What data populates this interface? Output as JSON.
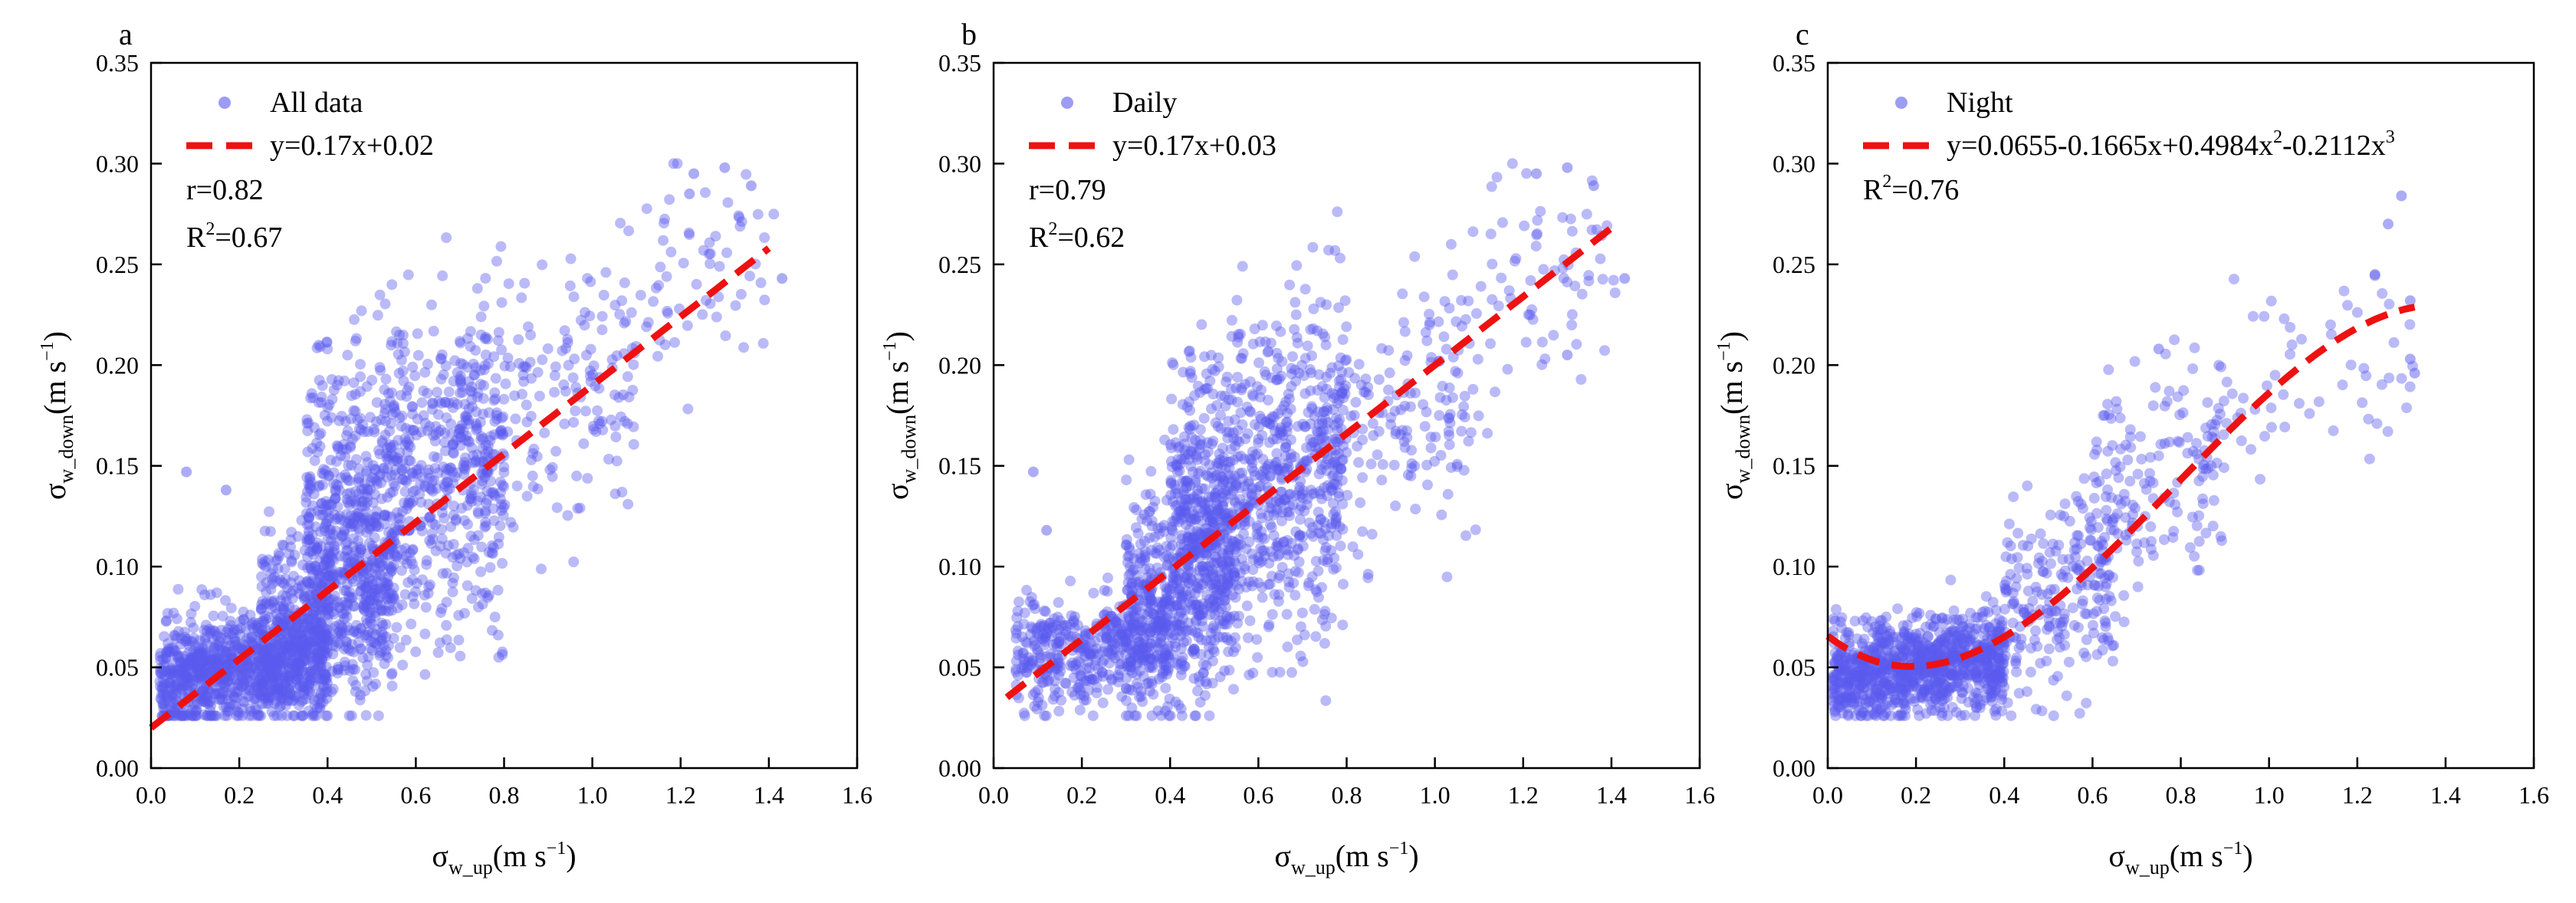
{
  "colors": {
    "points": "#5a5aee",
    "fit": "#ee1111",
    "axis": "#000000"
  },
  "chart_data": [
    {
      "type": "scatter",
      "panel": "a",
      "legend_placement": "top-left",
      "legend": {
        "series": "All data",
        "fit": "y=0.17x+0.02"
      },
      "fit": {
        "kind": "linear",
        "slope": 0.17,
        "intercept": 0.02,
        "x_range": [
          0.0,
          1.4
        ]
      },
      "stats": {
        "r": "r=0.82",
        "r2_prefix": "R",
        "r2_sup": "2",
        "r2_value": "=0.67"
      },
      "xlabel": {
        "base": "σ",
        "sub": "w_up",
        "unit_pre": "(m s",
        "unit_sup": "−1",
        "unit_post": ")"
      },
      "ylabel": {
        "base": "σ",
        "sub": "w_down",
        "unit_pre": "(m s",
        "unit_sup": "−1",
        "unit_post": ")"
      },
      "xlim": [
        0.0,
        1.6
      ],
      "ylim": [
        0.0,
        0.35
      ],
      "xticks": [
        "0.0",
        "0.2",
        "0.4",
        "0.6",
        "0.8",
        "1.0",
        "1.2",
        "1.4",
        "1.6"
      ],
      "yticks": [
        "0.00",
        "0.05",
        "0.10",
        "0.15",
        "0.20",
        "0.25",
        "0.30",
        "0.35"
      ],
      "cloud": [
        {
          "x_range": [
            0.02,
            0.4
          ],
          "y_center": 0.05,
          "y_spread": 0.013,
          "n": 1000
        },
        {
          "x_range": [
            0.25,
            0.55
          ],
          "y_center": 0.08,
          "y_spread": 0.025,
          "n": 550
        },
        {
          "x_range": [
            0.35,
            0.8
          ],
          "y_center": 0.14,
          "y_spread": 0.04,
          "n": 900
        },
        {
          "x_range": [
            0.75,
            1.1
          ],
          "y_center": 0.18,
          "y_spread": 0.035,
          "n": 160
        },
        {
          "x_range": [
            1.05,
            1.42
          ],
          "y_center": 0.24,
          "y_spread": 0.03,
          "n": 70
        }
      ],
      "outliers": [
        [
          0.08,
          0.147
        ],
        [
          0.17,
          0.138
        ],
        [
          1.3,
          0.298
        ],
        [
          1.23,
          0.295
        ],
        [
          1.36,
          0.289
        ],
        [
          1.43,
          0.243
        ],
        [
          1.22,
          0.285
        ]
      ]
    },
    {
      "type": "scatter",
      "panel": "b",
      "legend_placement": "top-left",
      "legend": {
        "series": "Daily",
        "fit": "y=0.17x+0.03"
      },
      "fit": {
        "kind": "linear",
        "slope": 0.17,
        "intercept": 0.03,
        "x_range": [
          0.03,
          1.4
        ]
      },
      "stats": {
        "r": "r=0.79",
        "r2_prefix": "R",
        "r2_sup": "2",
        "r2_value": "=0.62"
      },
      "xlabel": {
        "base": "σ",
        "sub": "w_up",
        "unit_pre": "(m s",
        "unit_sup": "−1",
        "unit_post": ")"
      },
      "ylabel": {
        "base": "σ",
        "sub": "w_down",
        "unit_pre": "(m s",
        "unit_sup": "−1",
        "unit_post": ")"
      },
      "xlim": [
        0.0,
        1.6
      ],
      "ylim": [
        0.0,
        0.35
      ],
      "xticks": [
        "0.0",
        "0.2",
        "0.4",
        "0.6",
        "0.8",
        "1.0",
        "1.2",
        "1.4",
        "1.6"
      ],
      "yticks": [
        "0.00",
        "0.05",
        "0.10",
        "0.15",
        "0.20",
        "0.25",
        "0.30",
        "0.35"
      ],
      "cloud": [
        {
          "x_range": [
            0.05,
            0.4
          ],
          "y_center": 0.06,
          "y_spread": 0.014,
          "n": 450
        },
        {
          "x_range": [
            0.3,
            0.55
          ],
          "y_center": 0.09,
          "y_spread": 0.028,
          "n": 500
        },
        {
          "x_range": [
            0.4,
            0.8
          ],
          "y_center": 0.14,
          "y_spread": 0.04,
          "n": 900
        },
        {
          "x_range": [
            0.75,
            1.1
          ],
          "y_center": 0.18,
          "y_spread": 0.035,
          "n": 160
        },
        {
          "x_range": [
            1.05,
            1.42
          ],
          "y_center": 0.24,
          "y_spread": 0.03,
          "n": 70
        }
      ],
      "outliers": [
        [
          0.09,
          0.147
        ],
        [
          0.12,
          0.118
        ],
        [
          1.3,
          0.298
        ],
        [
          1.23,
          0.295
        ],
        [
          1.36,
          0.289
        ],
        [
          1.43,
          0.243
        ],
        [
          1.3,
          0.205
        ]
      ]
    },
    {
      "type": "scatter",
      "panel": "c",
      "legend_placement": "top-left",
      "legend": {
        "series": "Night",
        "fit_pre": "y=0.0655-0.1665x+0.4984x",
        "fit_sup1": "2",
        "fit_mid": "-0.2112x",
        "fit_sup2": "3"
      },
      "fit": {
        "kind": "cubic",
        "coefficients": [
          0.0655,
          -0.1665,
          0.4984,
          -0.2112
        ],
        "x_range": [
          0.0,
          1.33
        ]
      },
      "stats": {
        "r2_prefix": "R",
        "r2_sup": "2",
        "r2_value": "=0.76"
      },
      "xlabel": {
        "base": "σ",
        "sub": "w_up",
        "unit_pre": "(m s",
        "unit_sup": "−1",
        "unit_post": ")"
      },
      "ylabel": {
        "base": "σ",
        "sub": "w_down",
        "unit_pre": "(m s",
        "unit_sup": "−1",
        "unit_post": ")"
      },
      "xlim": [
        0.0,
        1.6
      ],
      "ylim": [
        0.0,
        0.35
      ],
      "xticks": [
        "0.0",
        "0.2",
        "0.4",
        "0.6",
        "0.8",
        "1.0",
        "1.2",
        "1.4",
        "1.6"
      ],
      "yticks": [
        "0.00",
        "0.05",
        "0.10",
        "0.15",
        "0.20",
        "0.25",
        "0.30",
        "0.35"
      ],
      "cloud": [
        {
          "x_range": [
            0.01,
            0.4
          ],
          "y_center": 0.05,
          "y_spread": 0.012,
          "n": 1000
        },
        {
          "x_range": [
            0.4,
            0.65
          ],
          "y_center": 0.085,
          "y_spread": 0.025,
          "n": 220
        },
        {
          "x_range": [
            0.6,
            0.9
          ],
          "y_center": 0.14,
          "y_spread": 0.03,
          "n": 160
        },
        {
          "x_range": [
            0.9,
            1.34
          ],
          "y_center": 0.2,
          "y_spread": 0.025,
          "n": 55
        }
      ],
      "outliers": [
        [
          1.3,
          0.284
        ],
        [
          1.27,
          0.27
        ],
        [
          1.32,
          0.232
        ],
        [
          1.33,
          0.196
        ],
        [
          1.32,
          0.203
        ],
        [
          1.24,
          0.245
        ],
        [
          0.75,
          0.208
        ]
      ]
    }
  ]
}
